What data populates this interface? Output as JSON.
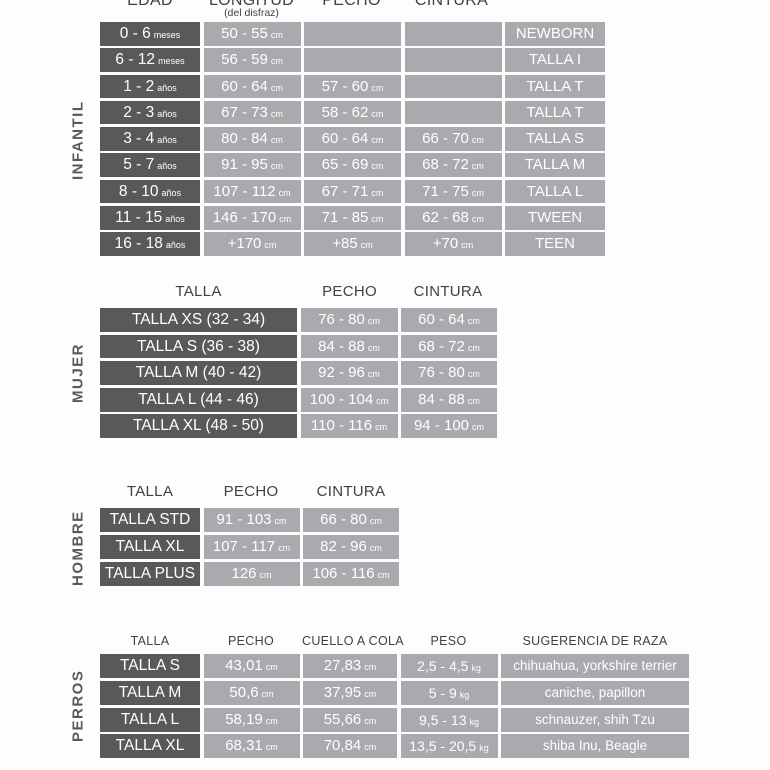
{
  "colors": {
    "dark_cell": "#58595b",
    "light_cell": "#a8aaad",
    "cell_text": "#ffffff",
    "header_text": "#414042",
    "background": "#fdfdfd"
  },
  "sections": [
    {
      "label": "INFANTIL",
      "headers": {
        "edad": "EDAD",
        "longitud": "LONGITUD",
        "longitud_sub": "(del disfraz)",
        "pecho": "PECHO",
        "cintura": "CINTURA"
      },
      "rows": [
        {
          "edad": "0 - 6",
          "edad_u": "meses",
          "longitud": "50 - 55",
          "longitud_u": "cm",
          "pecho": "",
          "pecho_u": "",
          "cintura": "",
          "cintura_u": "",
          "talla": "NEWBORN"
        },
        {
          "edad": "6 - 12",
          "edad_u": "meses",
          "longitud": "56 - 59",
          "longitud_u": "cm",
          "pecho": "",
          "pecho_u": "",
          "cintura": "",
          "cintura_u": "",
          "talla": "TALLA I"
        },
        {
          "edad": "1 - 2",
          "edad_u": "años",
          "longitud": "60 - 64",
          "longitud_u": "cm",
          "pecho": "57 - 60",
          "pecho_u": "cm",
          "cintura": "",
          "cintura_u": "",
          "talla": "TALLA T"
        },
        {
          "edad": "2 - 3",
          "edad_u": "años",
          "longitud": "67 - 73",
          "longitud_u": "cm",
          "pecho": "58 - 62",
          "pecho_u": "cm",
          "cintura": "",
          "cintura_u": "",
          "talla": "TALLA T"
        },
        {
          "edad": "3 - 4",
          "edad_u": "años",
          "longitud": "80 - 84",
          "longitud_u": "cm",
          "pecho": "60 - 64",
          "pecho_u": "cm",
          "cintura": "66 - 70",
          "cintura_u": "cm",
          "talla": "TALLA S"
        },
        {
          "edad": "5 - 7",
          "edad_u": "años",
          "longitud": "91 - 95",
          "longitud_u": "cm",
          "pecho": "65 - 69",
          "pecho_u": "cm",
          "cintura": "68 - 72",
          "cintura_u": "cm",
          "talla": "TALLA M"
        },
        {
          "edad": "8 - 10",
          "edad_u": "años",
          "longitud": "107 - 112",
          "longitud_u": "cm",
          "pecho": "67 - 71",
          "pecho_u": "cm",
          "cintura": "71 - 75",
          "cintura_u": "cm",
          "talla": "TALLA L"
        },
        {
          "edad": "11 - 15",
          "edad_u": "años",
          "longitud": "146 - 170",
          "longitud_u": "cm",
          "pecho": "71 - 85",
          "pecho_u": "cm",
          "cintura": "62 - 68",
          "cintura_u": "cm",
          "talla": "TWEEN"
        },
        {
          "edad": "16 - 18",
          "edad_u": "años",
          "longitud": "+170",
          "longitud_u": "cm",
          "pecho": "+85",
          "pecho_u": "cm",
          "cintura": "+70",
          "cintura_u": "cm",
          "talla": "TEEN"
        }
      ]
    },
    {
      "label": "MUJER",
      "headers": {
        "talla": "TALLA",
        "pecho": "PECHO",
        "cintura": "CINTURA"
      },
      "rows": [
        {
          "talla": "TALLA XS (32 - 34)",
          "pecho": "76 - 80",
          "pecho_u": "cm",
          "cintura": "60 - 64",
          "cintura_u": "cm"
        },
        {
          "talla": "TALLA S (36 - 38)",
          "pecho": "84 - 88",
          "pecho_u": "cm",
          "cintura": "68 - 72",
          "cintura_u": "cm"
        },
        {
          "talla": "TALLA M (40 - 42)",
          "pecho": "92 - 96",
          "pecho_u": "cm",
          "cintura": "76 - 80",
          "cintura_u": "cm"
        },
        {
          "talla": "TALLA L (44 - 46)",
          "pecho": "100 - 104",
          "pecho_u": "cm",
          "cintura": "84 - 88",
          "cintura_u": "cm"
        },
        {
          "talla": "TALLA XL (48 - 50)",
          "pecho": "110 - 116",
          "pecho_u": "cm",
          "cintura": "94 - 100",
          "cintura_u": "cm"
        }
      ]
    },
    {
      "label": "HOMBRE",
      "headers": {
        "talla": "TALLA",
        "pecho": "PECHO",
        "cintura": "CINTURA"
      },
      "rows": [
        {
          "talla": "TALLA STD",
          "pecho": "91 - 103",
          "pecho_u": "cm",
          "cintura": "66 - 80",
          "cintura_u": "cm"
        },
        {
          "talla": "TALLA XL",
          "pecho": "107 - 117",
          "pecho_u": "cm",
          "cintura": "82 - 96",
          "cintura_u": "cm"
        },
        {
          "talla": "TALLA PLUS",
          "pecho": "126",
          "pecho_u": "cm",
          "cintura": "106 - 116",
          "cintura_u": "cm"
        }
      ]
    },
    {
      "label": "PERROS",
      "headers": {
        "talla": "TALLA",
        "pecho": "PECHO",
        "cuello": "CUELLO A COLA",
        "peso": "PESO",
        "raza": "SUGERENCIA DE RAZA"
      },
      "rows": [
        {
          "talla": "TALLA S",
          "pecho": "43,01",
          "pecho_u": "cm",
          "cuello": "27,83",
          "cuello_u": "cm",
          "peso": "2,5 - 4,5",
          "peso_u": "kg",
          "raza": "chihuahua, yorkshire terrier"
        },
        {
          "talla": "TALLA M",
          "pecho": "50,6",
          "pecho_u": "cm",
          "cuello": "37,95",
          "cuello_u": "cm",
          "peso": "5 - 9",
          "peso_u": "kg",
          "raza": "caniche, papillon"
        },
        {
          "talla": "TALLA L",
          "pecho": "58,19",
          "pecho_u": "cm",
          "cuello": "55,66",
          "cuello_u": "cm",
          "peso": "9,5 - 13",
          "peso_u": "kg",
          "raza": "schnauzer, shih Tzu"
        },
        {
          "talla": "TALLA XL",
          "pecho": "68,31",
          "pecho_u": "cm",
          "cuello": "70,84",
          "cuello_u": "cm",
          "peso": "13,5 - 20,5",
          "peso_u": "kg",
          "raza": "shiba Inu, Beagle"
        }
      ]
    }
  ]
}
